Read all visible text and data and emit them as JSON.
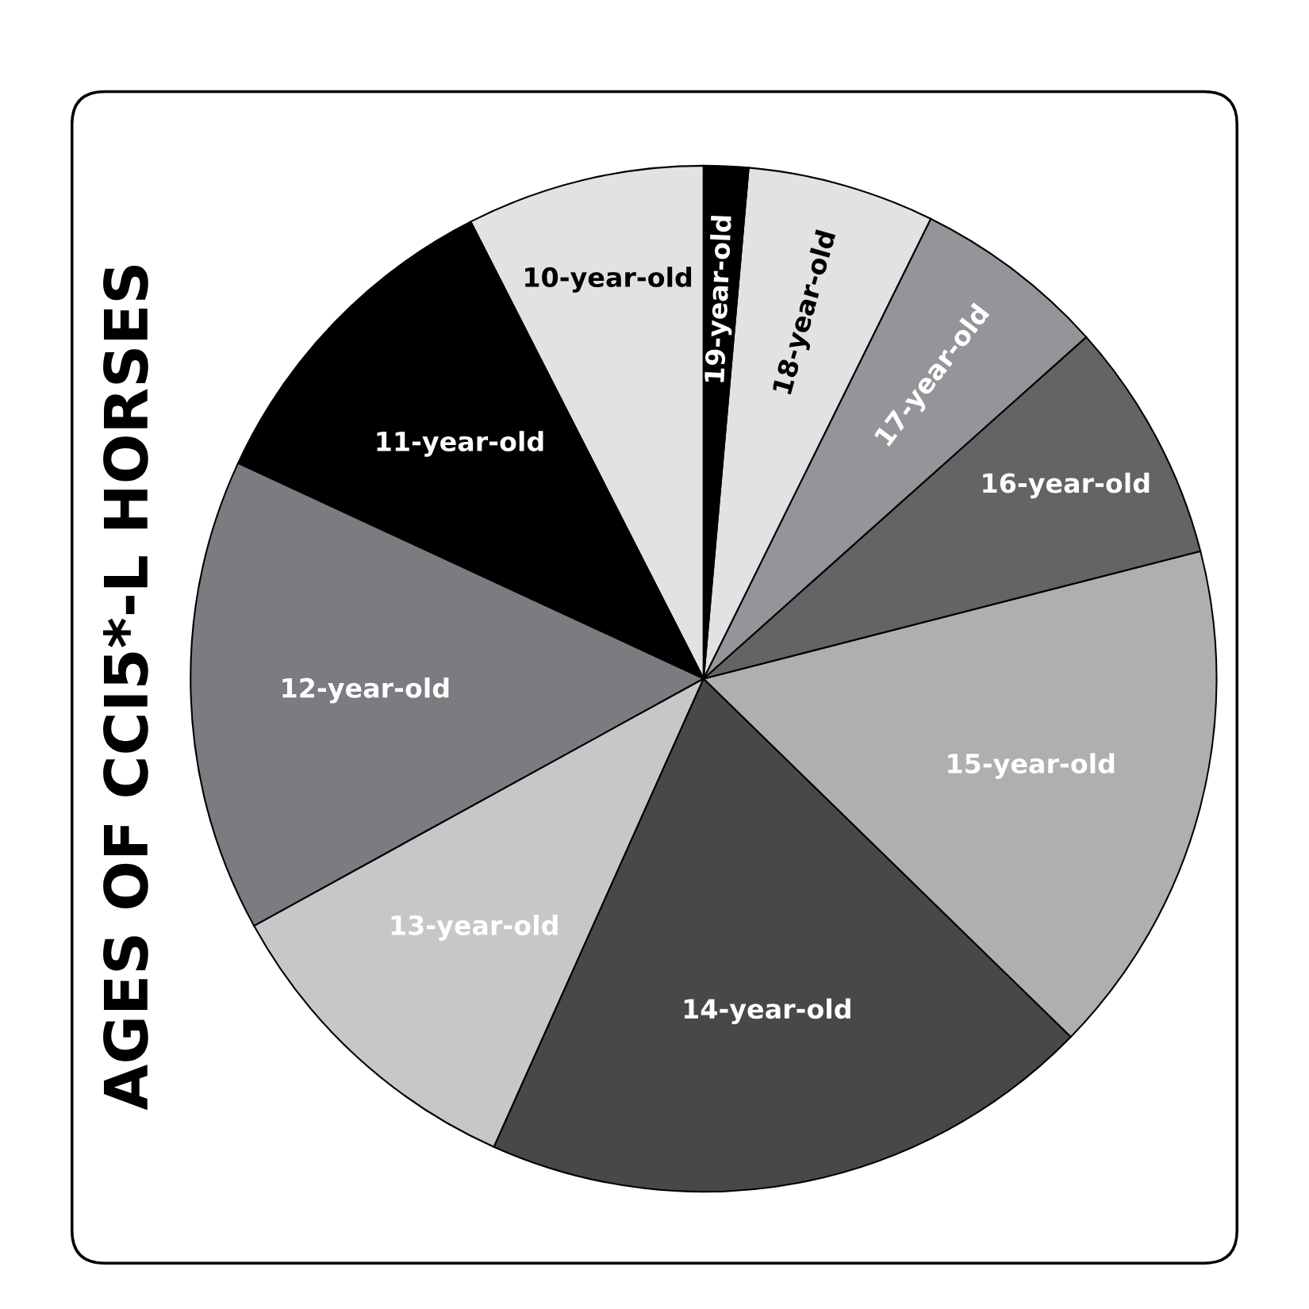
{
  "chart_data": {
    "type": "pie",
    "title": "AGES OF CCI5*-L HORSES",
    "categories": [
      "10-year-old",
      "11-year-old",
      "12-year-old",
      "13-year-old",
      "14-year-old",
      "15-year-old",
      "16-year-old",
      "17-year-old",
      "18-year-old",
      "19-year-old"
    ],
    "values": [
      7.5,
      10.6,
      14.9,
      10.3,
      19.4,
      16.3,
      7.6,
      6.1,
      5.9,
      1.4
    ],
    "colors": [
      "#e1e2e3",
      "#000000",
      "#7b7c80",
      "#c6c7c9",
      "#48484a",
      "#aeafb1",
      "#636466",
      "#939598",
      "#e1e2e3",
      "#000000"
    ],
    "legend": false
  }
}
